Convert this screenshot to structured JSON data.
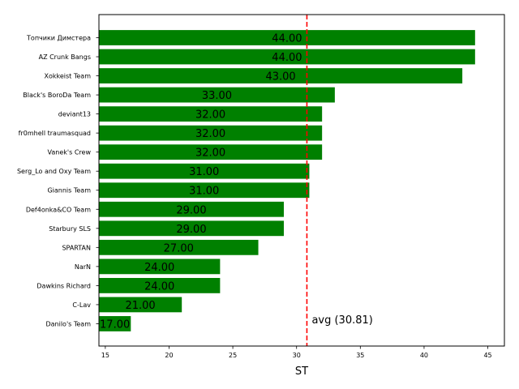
{
  "chart_data": {
    "type": "bar",
    "orientation": "horizontal",
    "categories": [
      "Топчики Димстера",
      "AZ Crunk Bangs",
      "Xokkeist Team",
      "Black's BoroDa Team",
      "deviant13",
      "fr0mhell traumasquad",
      "Vanek's Crew",
      "Serg_Lo and Oxy Team",
      "Giannis Team",
      "Def4onka&CO Team",
      "Starbury SLS",
      "SPARTAN",
      "NarN",
      "Dawkins Richard",
      "C-Lav",
      "Danilo's Team"
    ],
    "values": [
      44,
      44,
      43,
      33,
      32,
      32,
      32,
      31,
      31,
      29,
      29,
      27,
      24,
      24,
      21,
      17
    ],
    "value_labels": [
      "44.00",
      "44.00",
      "43.00",
      "33.00",
      "32.00",
      "32.00",
      "32.00",
      "31.00",
      "31.00",
      "29.00",
      "29.00",
      "27.00",
      "24.00",
      "24.00",
      "21.00",
      "17.00"
    ],
    "xlabel": "ST",
    "xlim": [
      14.5,
      46.3
    ],
    "xticks": [
      15,
      20,
      25,
      30,
      35,
      40,
      45
    ],
    "bar_color": "#008000",
    "average": {
      "value": 30.81,
      "label": "avg (30.81)",
      "color": "#ff0000",
      "style": "dashed"
    },
    "grid": false
  }
}
